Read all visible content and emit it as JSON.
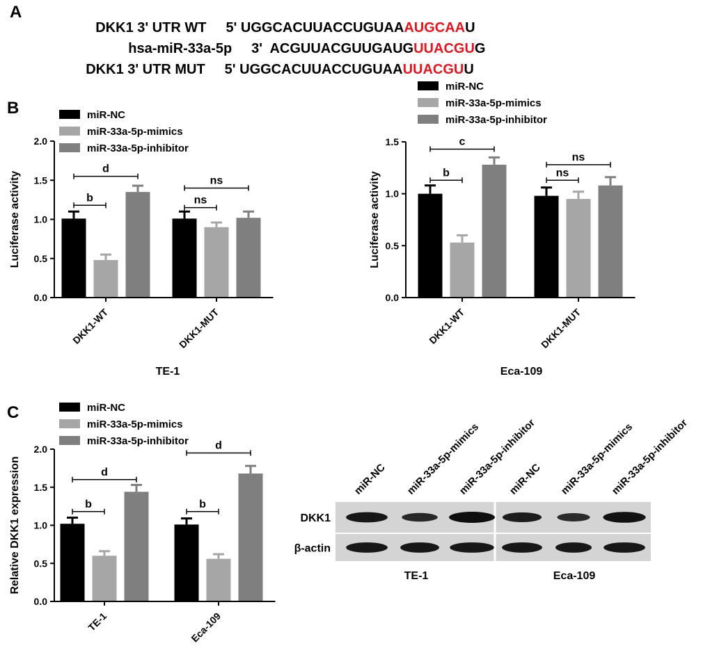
{
  "panel_labels": {
    "a": "A",
    "b": "B",
    "c": "C"
  },
  "sequences": [
    {
      "name": "DKK1 3' UTR WT",
      "prime": "5'",
      "seq": "UGGCACUUACCUGUAA",
      "highlight": "AUGCAA",
      "tail": "U"
    },
    {
      "name": "hsa-miR-33a-5p",
      "prime": "3'",
      "seq": "ACGUUACGUUGAUG",
      "highlight": "UUACGU",
      "tail": "G"
    },
    {
      "name": "DKK1 3' UTR MUT",
      "prime": "5'",
      "seq": "UGGCACUUACCUGUAA",
      "highlight": "UUACGU",
      "tail": "U"
    }
  ],
  "colors": {
    "nc": "#000000",
    "mimics": "#a6a6a6",
    "inhibitor": "#7f7f7f",
    "highlight": "#e8141c"
  },
  "legend": [
    "miR-NC",
    "miR-33a-5p-mimics",
    "miR-33a-5p-inhibitor"
  ],
  "chart_data": [
    {
      "type": "bar",
      "title": "TE-1",
      "ylabel": "Luciferase activity",
      "ylim": [
        0,
        2.0
      ],
      "yticks": [
        "0.0",
        "0.5",
        "1.0",
        "1.5",
        "2.0"
      ],
      "categories": [
        "DKK1-WT",
        "DKK1-MUT"
      ],
      "series": [
        {
          "name": "miR-NC",
          "values": [
            1.01,
            1.01
          ],
          "errors": [
            0.09,
            0.09
          ]
        },
        {
          "name": "miR-33a-5p-mimics",
          "values": [
            0.48,
            0.9
          ],
          "errors": [
            0.07,
            0.06
          ]
        },
        {
          "name": "miR-33a-5p-inhibitor",
          "values": [
            1.35,
            1.02
          ],
          "errors": [
            0.08,
            0.08
          ]
        }
      ],
      "annotations": [
        {
          "label": "b",
          "from": [
            0,
            0
          ],
          "to": [
            0,
            1
          ],
          "level": 1.18
        },
        {
          "label": "d",
          "from": [
            0,
            0
          ],
          "to": [
            0,
            2
          ],
          "level": 1.55
        },
        {
          "label": "ns",
          "from": [
            1,
            0
          ],
          "to": [
            1,
            1
          ],
          "level": 1.15
        },
        {
          "label": "ns",
          "from": [
            1,
            0
          ],
          "to": [
            1,
            2
          ],
          "level": 1.4
        }
      ]
    },
    {
      "type": "bar",
      "title": "Eca-109",
      "ylabel": "Luciferase activity",
      "ylim": [
        0,
        1.5
      ],
      "yticks": [
        "0.0",
        "0.5",
        "1.0",
        "1.5"
      ],
      "categories": [
        "DKK1-WT",
        "DKK1-MUT"
      ],
      "series": [
        {
          "name": "miR-NC",
          "values": [
            1.0,
            0.98
          ],
          "errors": [
            0.08,
            0.08
          ]
        },
        {
          "name": "miR-33a-5p-mimics",
          "values": [
            0.53,
            0.95
          ],
          "errors": [
            0.07,
            0.07
          ]
        },
        {
          "name": "miR-33a-5p-inhibitor",
          "values": [
            1.28,
            1.08
          ],
          "errors": [
            0.07,
            0.08
          ]
        }
      ],
      "annotations": [
        {
          "label": "b",
          "from": [
            0,
            0
          ],
          "to": [
            0,
            1
          ],
          "level": 1.13
        },
        {
          "label": "c",
          "from": [
            0,
            0
          ],
          "to": [
            0,
            2
          ],
          "level": 1.43
        },
        {
          "label": "ns",
          "from": [
            1,
            0
          ],
          "to": [
            1,
            1
          ],
          "level": 1.13
        },
        {
          "label": "ns",
          "from": [
            1,
            0
          ],
          "to": [
            1,
            2
          ],
          "level": 1.28
        }
      ]
    },
    {
      "type": "bar",
      "title": "",
      "ylabel": "Relative DKK1 expression",
      "ylim": [
        0,
        2.0
      ],
      "yticks": [
        "0.0",
        "0.5",
        "1.0",
        "1.5",
        "2.0"
      ],
      "categories": [
        "TE-1",
        "Eca-109"
      ],
      "series": [
        {
          "name": "miR-NC",
          "values": [
            1.02,
            1.01
          ],
          "errors": [
            0.08,
            0.08
          ]
        },
        {
          "name": "miR-33a-5p-mimics",
          "values": [
            0.6,
            0.56
          ],
          "errors": [
            0.06,
            0.06
          ]
        },
        {
          "name": "miR-33a-5p-inhibitor",
          "values": [
            1.44,
            1.68
          ],
          "errors": [
            0.09,
            0.1
          ]
        }
      ],
      "annotations": [
        {
          "label": "b",
          "from": [
            0,
            0
          ],
          "to": [
            0,
            1
          ],
          "level": 1.18
        },
        {
          "label": "d",
          "from": [
            0,
            0
          ],
          "to": [
            0,
            2
          ],
          "level": 1.6
        },
        {
          "label": "b",
          "from": [
            1,
            0
          ],
          "to": [
            1,
            1
          ],
          "level": 1.18
        },
        {
          "label": "d",
          "from": [
            1,
            0
          ],
          "to": [
            1,
            2
          ],
          "level": 1.95
        }
      ]
    }
  ],
  "western_blot": {
    "lanes": [
      "miR-NC",
      "miR-33a-5p-mimics",
      "miR-33a-5p-inhibitor",
      "miR-NC",
      "miR-33a-5p-mimics",
      "miR-33a-5p-inhibitor"
    ],
    "rows": [
      "DKK1",
      "β-actin"
    ],
    "groups": [
      "TE-1",
      "Eca-109"
    ],
    "dkk1_intensity": [
      0.85,
      0.55,
      1.0,
      0.75,
      0.5,
      0.95
    ],
    "actin_intensity": [
      0.85,
      0.85,
      0.85,
      0.85,
      0.85,
      0.85
    ]
  }
}
